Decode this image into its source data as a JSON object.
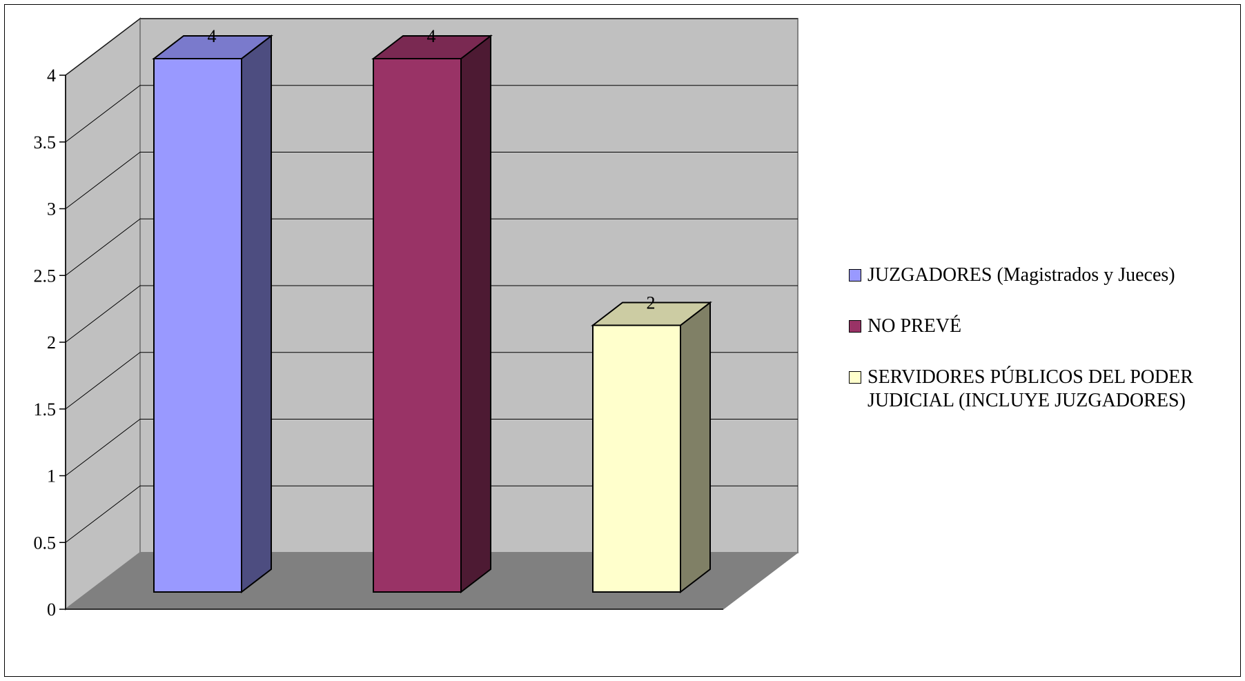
{
  "chart_data": {
    "type": "bar",
    "categories": [
      "JUZGADORES (Magistrados y Jueces)",
      "NO PREVÉ",
      "SERVIDORES PÚBLICOS DEL PODER JUDICIAL (INCLUYE JUZGADORES)"
    ],
    "values": [
      4,
      4,
      2
    ],
    "data_labels": [
      "4",
      "4",
      "2"
    ],
    "colors": [
      "#9999ff",
      "#993366",
      "#ffffcc"
    ],
    "ylim": [
      0,
      4
    ],
    "yticks": [
      0,
      0.5,
      1,
      1.5,
      2,
      2.5,
      3,
      3.5,
      4
    ],
    "ytick_labels": [
      "0",
      "0.5",
      "1",
      "1.5",
      "2",
      "2.5",
      "3",
      "3.5",
      "4"
    ],
    "grid": true,
    "three_d": true,
    "legend_position": "right",
    "title": "",
    "xlabel": "",
    "ylabel": ""
  },
  "colors": {
    "back_wall": "#c0c0c0",
    "side_wall": "#c0c0c0",
    "floor": "#808080",
    "gridline": "#000000"
  }
}
